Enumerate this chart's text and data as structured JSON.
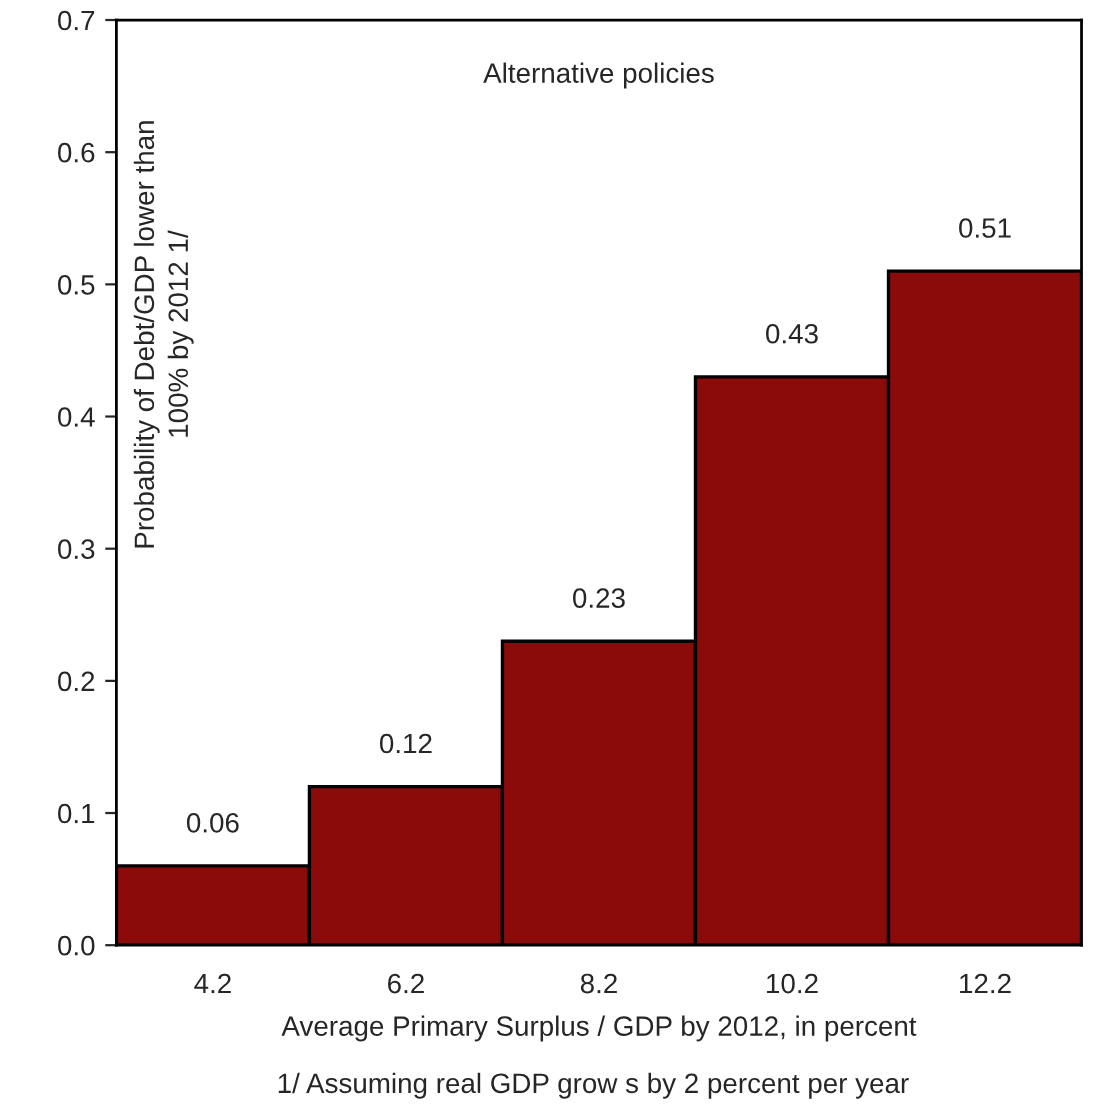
{
  "chart_data": {
    "type": "bar",
    "xlabel": "Average Primary Surplus / GDP by 2012, in percent",
    "ylabel": "Probability of Debt/GDP lower than\n100% by 2012 1/",
    "categories": [
      "4.2",
      "6.2",
      "8.2",
      "10.2",
      "12.2"
    ],
    "values": [
      0.06,
      0.12,
      0.23,
      0.43,
      0.51
    ],
    "color": "#8b0a0a",
    "ylim": [
      0,
      0.7
    ],
    "yticks": [
      {
        "value": 0,
        "label": "0.0"
      },
      0.1,
      0.2,
      0.3,
      0.4,
      0.5,
      0.6,
      0.7
    ],
    "data_labels": true,
    "grid": false,
    "annotations": [
      {
        "text": "Alternative policies"
      },
      {
        "text": "1/ Assuming real GDP grow s by 2 percent per year"
      }
    ]
  }
}
